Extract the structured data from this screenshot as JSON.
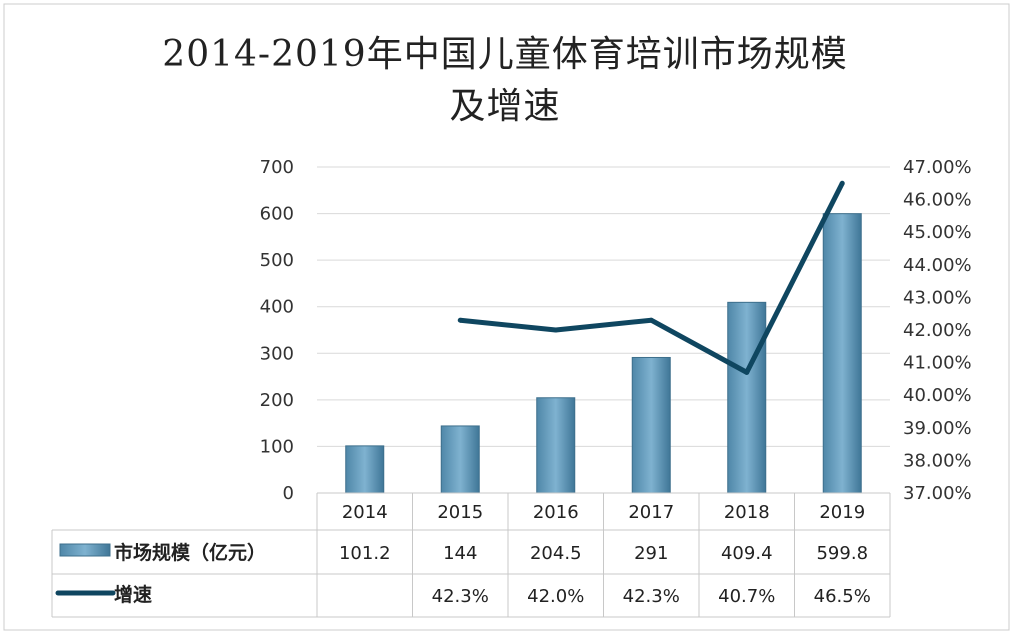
{
  "chart_data": {
    "type": "bar+line",
    "title": [
      "2014-2019年中国儿童体育培训市场规模",
      "及增速"
    ],
    "categories": [
      "2014",
      "2015",
      "2016",
      "2017",
      "2018",
      "2019"
    ],
    "series": [
      {
        "name": "市场规模（亿元）",
        "type": "bar",
        "axis": "left",
        "values": [
          101.2,
          144,
          204.5,
          291,
          409.4,
          599.8
        ],
        "labels": [
          "101.2",
          "144",
          "204.5",
          "291",
          "409.4",
          "599.8"
        ],
        "color": "#5f97b8"
      },
      {
        "name": "增速",
        "type": "line",
        "axis": "right",
        "values": [
          null,
          42.3,
          42.0,
          42.3,
          40.7,
          46.5
        ],
        "labels": [
          "",
          "42.3%",
          "42.0%",
          "42.3%",
          "40.7%",
          "46.5%"
        ],
        "color": "#0f4660"
      }
    ],
    "y_left": {
      "range": [
        0,
        700
      ],
      "ticks": [
        "0",
        "100",
        "200",
        "300",
        "400",
        "500",
        "600",
        "700"
      ]
    },
    "y_right": {
      "range": [
        37,
        47
      ],
      "ticks": [
        "37.00%",
        "38.00%",
        "39.00%",
        "40.00%",
        "41.00%",
        "42.00%",
        "43.00%",
        "44.00%",
        "45.00%",
        "46.00%",
        "47.00%"
      ]
    },
    "grid": true,
    "legend": "data-table"
  }
}
